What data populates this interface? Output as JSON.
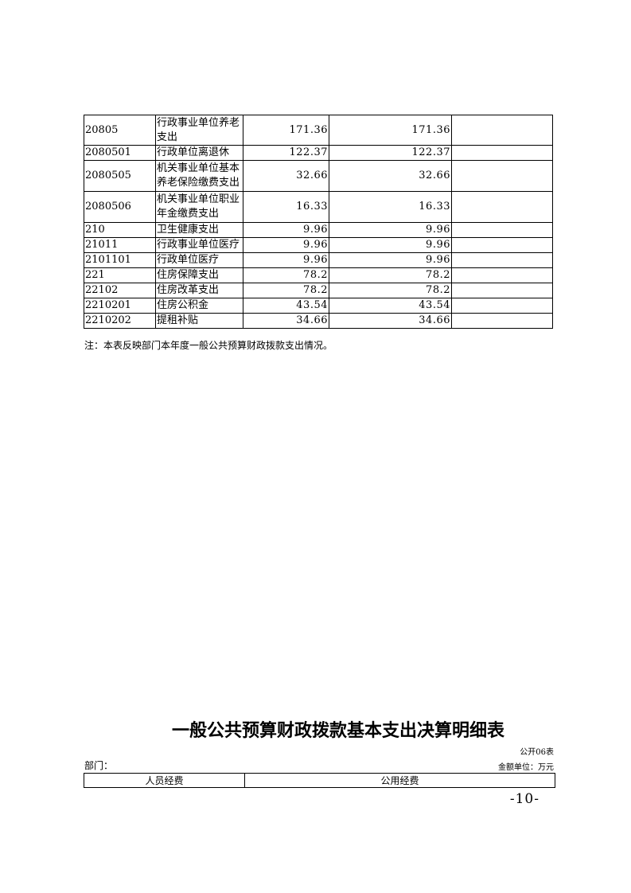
{
  "table": {
    "rows": [
      {
        "code": "20805",
        "name": "行政事业单位养老支出",
        "col3": "171.36",
        "col4": "171.36",
        "col5": ""
      },
      {
        "code": "2080501",
        "name": "行政单位离退休",
        "col3": "122.37",
        "col4": "122.37",
        "col5": ""
      },
      {
        "code": "2080505",
        "name": "机关事业单位基本养老保险缴费支出",
        "col3": "32.66",
        "col4": "32.66",
        "col5": ""
      },
      {
        "code": "2080506",
        "name": "机关事业单位职业年金缴费支出",
        "col3": "16.33",
        "col4": "16.33",
        "col5": ""
      },
      {
        "code": "210",
        "name": "卫生健康支出",
        "col3": "9.96",
        "col4": "9.96",
        "col5": ""
      },
      {
        "code": "21011",
        "name": "行政事业单位医疗",
        "col3": "9.96",
        "col4": "9.96",
        "col5": ""
      },
      {
        "code": "2101101",
        "name": "行政单位医疗",
        "col3": "9.96",
        "col4": "9.96",
        "col5": ""
      },
      {
        "code": "221",
        "name": "住房保障支出",
        "col3": "78.2",
        "col4": "78.2",
        "col5": ""
      },
      {
        "code": "22102",
        "name": "住房改革支出",
        "col3": "78.2",
        "col4": "78.2",
        "col5": ""
      },
      {
        "code": "2210201",
        "name": "住房公积金",
        "col3": "43.54",
        "col4": "43.54",
        "col5": ""
      },
      {
        "code": "2210202",
        "name": "提租补贴",
        "col3": "34.66",
        "col4": "34.66",
        "col5": ""
      }
    ],
    "note": "注：本表反映部门本年度一般公共预算财政拨款支出情况。"
  },
  "next_table": {
    "title": "一般公共预算财政拨款基本支出决算明细表",
    "form_no": "公开06表",
    "dept_label": "部门：",
    "unit_label": "金额单位：万元",
    "headers": [
      "人员经费",
      "公用经费"
    ]
  },
  "page_number": "-10-"
}
